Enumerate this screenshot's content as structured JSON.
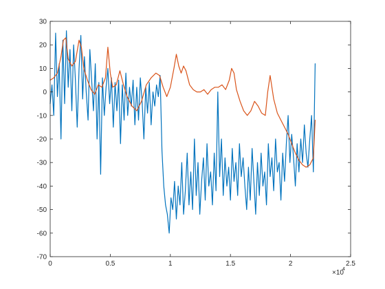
{
  "chart_data": {
    "type": "line",
    "title": "",
    "xlabel": "",
    "ylabel": "",
    "xlim": [
      0,
      25000
    ],
    "ylim": [
      -70,
      30
    ],
    "x_ticks": [
      {
        "value": 0,
        "label": "0"
      },
      {
        "value": 5000,
        "label": "0.5"
      },
      {
        "value": 10000,
        "label": "1"
      },
      {
        "value": 15000,
        "label": "1.5"
      },
      {
        "value": 20000,
        "label": "2"
      },
      {
        "value": 25000,
        "label": "2.5"
      }
    ],
    "x_exponent_label": "×10",
    "x_exponent_power": "4",
    "y_ticks": [
      {
        "value": 30,
        "label": "30"
      },
      {
        "value": 20,
        "label": "20"
      },
      {
        "value": 10,
        "label": "10"
      },
      {
        "value": 0,
        "label": "0"
      },
      {
        "value": -10,
        "label": "-10"
      },
      {
        "value": -20,
        "label": "-20"
      },
      {
        "value": -30,
        "label": "-30"
      },
      {
        "value": -40,
        "label": "-40"
      },
      {
        "value": -50,
        "label": "-50"
      },
      {
        "value": -60,
        "label": "-60"
      },
      {
        "value": -70,
        "label": "-70"
      }
    ],
    "grid": false,
    "legend": "none",
    "series": [
      {
        "color": "#0072BD",
        "x": [
          0,
          150,
          300,
          450,
          600,
          750,
          900,
          1050,
          1200,
          1350,
          1500,
          1650,
          1800,
          1950,
          2100,
          2250,
          2400,
          2550,
          2700,
          2850,
          3000,
          3150,
          3300,
          3450,
          3600,
          3750,
          3900,
          4050,
          4200,
          4350,
          4500,
          4650,
          4800,
          4950,
          5100,
          5250,
          5400,
          5550,
          5700,
          5850,
          6000,
          6150,
          6300,
          6450,
          6600,
          6750,
          6900,
          7050,
          7200,
          7350,
          7500,
          7650,
          7800,
          7950,
          8100,
          8250,
          8400,
          8550,
          8700,
          8850,
          9000,
          9150,
          9300,
          9450,
          9600,
          9750,
          9900,
          10050,
          10200,
          10350,
          10500,
          10650,
          10800,
          10950,
          11100,
          11250,
          11400,
          11550,
          11700,
          11850,
          12000,
          12150,
          12300,
          12450,
          12600,
          12750,
          12900,
          13050,
          13200,
          13350,
          13500,
          13650,
          13800,
          13950,
          14100,
          14250,
          14400,
          14550,
          14700,
          14850,
          15000,
          15150,
          15300,
          15450,
          15600,
          15750,
          15900,
          16050,
          16200,
          16350,
          16500,
          16650,
          16800,
          16950,
          17100,
          17250,
          17400,
          17550,
          17700,
          17850,
          18000,
          18150,
          18300,
          18450,
          18600,
          18750,
          18900,
          19050,
          19200,
          19350,
          19500,
          19650,
          19800,
          19950,
          20100,
          20250,
          20400,
          20550,
          20700,
          20850,
          21000,
          21150,
          21300,
          21450,
          21600,
          21750,
          21900,
          22050
        ],
        "y": [
          -5,
          3,
          -10,
          25,
          -2,
          12,
          -20,
          22,
          -5,
          26,
          2,
          18,
          -8,
          20,
          5,
          -15,
          10,
          24,
          -3,
          15,
          0,
          -12,
          18,
          5,
          -8,
          12,
          -20,
          4,
          -35,
          6,
          -10,
          2,
          10,
          -5,
          6,
          -15,
          4,
          -8,
          5,
          -22,
          3,
          -12,
          8,
          -10,
          2,
          -6,
          5,
          -14,
          2,
          -12,
          6,
          -4,
          -20,
          2,
          -9,
          4,
          -14,
          0,
          -6,
          3,
          -2,
          7,
          -25,
          -40,
          -48,
          -52,
          -60,
          -45,
          -50,
          -38,
          -54,
          -40,
          -48,
          -30,
          -52,
          -42,
          -26,
          -48,
          -34,
          -50,
          -20,
          -44,
          -30,
          -52,
          -38,
          -28,
          -46,
          -22,
          -40,
          -34,
          -48,
          -26,
          -42,
          0,
          -36,
          -20,
          -44,
          -28,
          -40,
          -32,
          -46,
          -24,
          -38,
          -30,
          -44,
          -22,
          -36,
          -28,
          -40,
          -50,
          -32,
          -46,
          -24,
          -38,
          -52,
          -30,
          -44,
          -26,
          -40,
          -34,
          -48,
          -22,
          -36,
          -28,
          -42,
          -20,
          -34,
          -30,
          -46,
          -26,
          -38,
          -22,
          -10,
          -30,
          -18,
          -28,
          -40,
          -22,
          -34,
          -20,
          -30,
          -14,
          -26,
          -32,
          -20,
          -10,
          -34,
          12
        ],
        "values_note": ""
      },
      {
        "color": "#D95319",
        "x": [
          0,
          300,
          600,
          900,
          1100,
          1300,
          1500,
          1800,
          2100,
          2400,
          2600,
          2800,
          3100,
          3400,
          3700,
          4000,
          4300,
          4600,
          4800,
          5000,
          5200,
          5500,
          5800,
          6100,
          6400,
          6800,
          7200,
          7600,
          8000,
          8400,
          8800,
          9100,
          9400,
          9700,
          10000,
          10300,
          10500,
          10700,
          10900,
          11100,
          11300,
          11600,
          11900,
          12200,
          12500,
          12800,
          13100,
          13400,
          13700,
          14000,
          14300,
          14600,
          14900,
          15100,
          15300,
          15500,
          15800,
          16100,
          16400,
          16700,
          17000,
          17300,
          17600,
          17900,
          18100,
          18300,
          18600,
          18900,
          19200,
          19500,
          19800,
          20100,
          20400,
          20700,
          21000,
          21300,
          21600,
          21900,
          22050
        ],
        "y": [
          5,
          6,
          8,
          15,
          22,
          23,
          14,
          11,
          13,
          22,
          19,
          10,
          5,
          1,
          -1,
          3,
          2,
          6,
          19,
          8,
          2,
          3,
          9,
          3,
          -2,
          -6,
          -8,
          -4,
          3,
          6,
          8,
          7,
          2,
          -2,
          2,
          10,
          16,
          11,
          8,
          11,
          9,
          3,
          1,
          0,
          0,
          1,
          -1,
          1,
          2,
          2,
          3,
          1,
          5,
          10,
          8,
          1,
          -4,
          -8,
          -10,
          -8,
          -4,
          -6,
          -9,
          -10,
          0,
          7,
          -3,
          -9,
          -12,
          -15,
          -18,
          -22,
          -26,
          -29,
          -31,
          -32,
          -31,
          -28,
          -12
        ],
        "values_note": ""
      }
    ]
  }
}
